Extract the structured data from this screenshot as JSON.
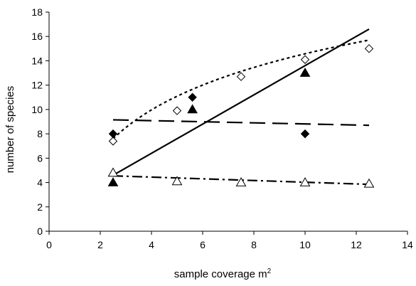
{
  "chart_data": {
    "type": "scatter",
    "xlabel": "sample coverage m",
    "xlabel_superscript": "2",
    "ylabel": "number of species",
    "xlim": [
      0,
      14
    ],
    "ylim": [
      0,
      18
    ],
    "x_ticks": [
      "0",
      "2",
      "4",
      "6",
      "8",
      "10",
      "12",
      "14"
    ],
    "y_ticks": [
      "0",
      "2",
      "4",
      "6",
      "8",
      "10",
      "12",
      "14",
      "16",
      "18"
    ],
    "grid": false,
    "legend": "none",
    "series": [
      {
        "marker": "open-diamond",
        "points": [
          [
            2.5,
            7.4
          ],
          [
            5.0,
            9.9
          ],
          [
            7.5,
            12.7
          ],
          [
            10.0,
            14.1
          ],
          [
            12.5,
            15.0
          ]
        ],
        "trend": {
          "style": "dotted",
          "kind": "logarithmic",
          "x_range": [
            2.5,
            12.5
          ],
          "y_range": [
            7.6,
            15.7
          ]
        }
      },
      {
        "marker": "filled-diamond",
        "points": [
          [
            2.5,
            8.0
          ],
          [
            5.6,
            11.0
          ],
          [
            10.0,
            8.0
          ]
        ],
        "trend": {
          "style": "dashed",
          "kind": "linear",
          "x_range": [
            2.5,
            12.5
          ],
          "y_range": [
            9.15,
            8.7
          ]
        }
      },
      {
        "marker": "filled-triangle",
        "points": [
          [
            2.5,
            4.0
          ],
          [
            5.6,
            10.0
          ],
          [
            10.0,
            13.0
          ]
        ],
        "trend": {
          "style": "solid",
          "kind": "linear",
          "x_range": [
            2.5,
            12.5
          ],
          "y_range": [
            4.6,
            16.6
          ]
        }
      },
      {
        "marker": "open-triangle",
        "points": [
          [
            2.5,
            4.8
          ],
          [
            5.0,
            4.1
          ],
          [
            7.5,
            4.0
          ],
          [
            10.0,
            4.0
          ],
          [
            12.5,
            3.9
          ]
        ],
        "trend": {
          "style": "dash-dot",
          "kind": "linear",
          "x_range": [
            2.5,
            12.5
          ],
          "y_range": [
            4.55,
            3.85
          ]
        }
      }
    ]
  }
}
